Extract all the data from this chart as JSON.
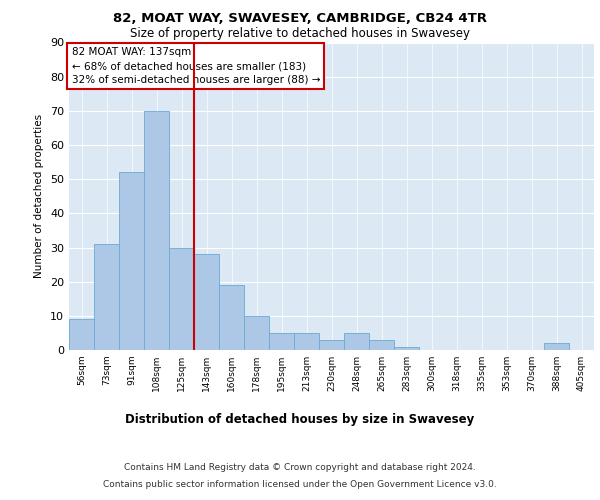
{
  "title": "82, MOAT WAY, SWAVESEY, CAMBRIDGE, CB24 4TR",
  "subtitle": "Size of property relative to detached houses in Swavesey",
  "xlabel": "Distribution of detached houses by size in Swavesey",
  "ylabel": "Number of detached properties",
  "categories": [
    "56sqm",
    "73sqm",
    "91sqm",
    "108sqm",
    "125sqm",
    "143sqm",
    "160sqm",
    "178sqm",
    "195sqm",
    "213sqm",
    "230sqm",
    "248sqm",
    "265sqm",
    "283sqm",
    "300sqm",
    "318sqm",
    "335sqm",
    "353sqm",
    "370sqm",
    "388sqm",
    "405sqm"
  ],
  "values": [
    9,
    31,
    52,
    70,
    30,
    28,
    19,
    10,
    5,
    5,
    3,
    5,
    3,
    1,
    0,
    0,
    0,
    0,
    0,
    2,
    0
  ],
  "bar_color": "#adc8e6",
  "bar_edge_color": "#6aaad4",
  "vline_color": "#cc0000",
  "annotation_box_text": "82 MOAT WAY: 137sqm\n← 68% of detached houses are smaller (183)\n32% of semi-detached houses are larger (88) →",
  "annotation_box_bg": "#ffffff",
  "ylim": [
    0,
    90
  ],
  "yticks": [
    0,
    10,
    20,
    30,
    40,
    50,
    60,
    70,
    80,
    90
  ],
  "bg_color": "#dce9f5",
  "grid_color": "#ffffff",
  "footer_line1": "Contains HM Land Registry data © Crown copyright and database right 2024.",
  "footer_line2": "Contains public sector information licensed under the Open Government Licence v3.0."
}
